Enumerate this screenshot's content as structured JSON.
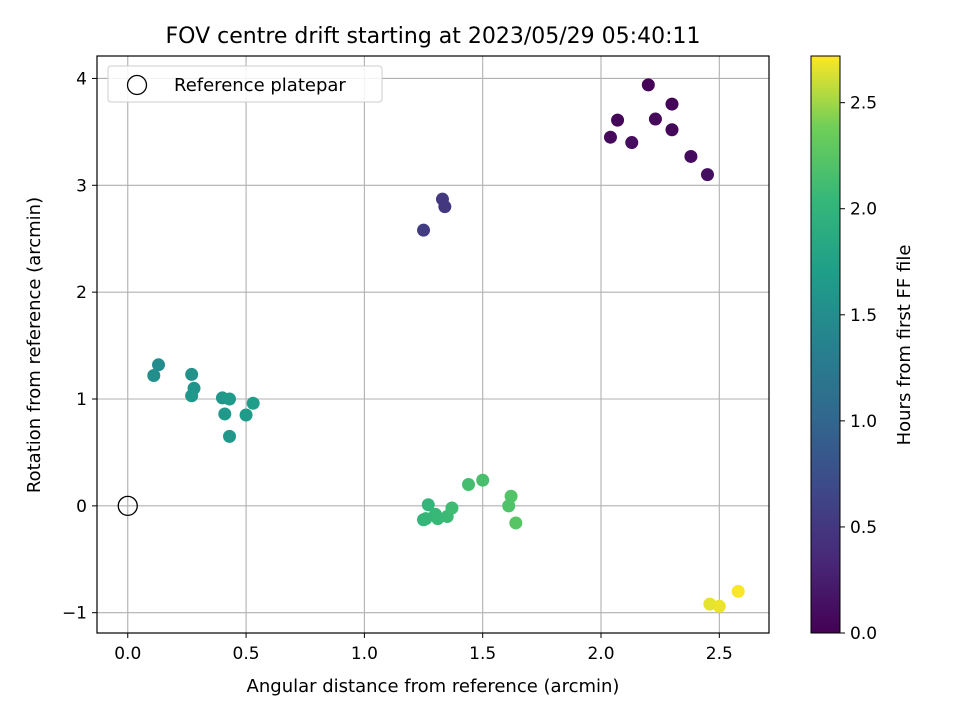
{
  "chart_data": {
    "type": "scatter",
    "title": "FOV centre drift starting at 2023/05/29 05:40:11",
    "xlabel": "Angular distance from reference (arcmin)",
    "ylabel": "Rotation from reference (arcmin)",
    "xlim": [
      -0.13,
      2.71
    ],
    "ylim": [
      -1.19,
      4.21
    ],
    "x_ticks": [
      0.0,
      0.5,
      1.0,
      1.5,
      2.0,
      2.5
    ],
    "x_tick_labels": [
      "0.0",
      "0.5",
      "1.0",
      "1.5",
      "2.0",
      "2.5"
    ],
    "y_ticks": [
      -1,
      0,
      1,
      2,
      3,
      4
    ],
    "y_tick_labels": [
      "−1",
      "0",
      "1",
      "2",
      "3",
      "4"
    ],
    "grid": true,
    "legend": {
      "position": "top-left",
      "label": "Reference platepar"
    },
    "reference": {
      "x": 0.0,
      "y": 0.0
    },
    "colorbar": {
      "label": "Hours from first FF file",
      "range": [
        0.0,
        2.72
      ],
      "ticks": [
        0.0,
        0.5,
        1.0,
        1.5,
        2.0,
        2.5
      ],
      "tick_labels": [
        "0.0",
        "0.5",
        "1.0",
        "1.5",
        "2.0",
        "2.5"
      ],
      "colormap": "viridis"
    },
    "points": [
      {
        "x": 2.2,
        "y": 3.94,
        "hours": 0.02
      },
      {
        "x": 2.07,
        "y": 3.61,
        "hours": 0.04
      },
      {
        "x": 2.3,
        "y": 3.76,
        "hours": 0.03
      },
      {
        "x": 2.23,
        "y": 3.62,
        "hours": 0.06
      },
      {
        "x": 2.04,
        "y": 3.45,
        "hours": 0.08
      },
      {
        "x": 2.13,
        "y": 3.4,
        "hours": 0.1
      },
      {
        "x": 2.3,
        "y": 3.52,
        "hours": 0.05
      },
      {
        "x": 2.38,
        "y": 3.27,
        "hours": 0.09
      },
      {
        "x": 2.45,
        "y": 3.1,
        "hours": 0.12
      },
      {
        "x": 1.25,
        "y": 2.58,
        "hours": 0.55
      },
      {
        "x": 1.33,
        "y": 2.87,
        "hours": 0.52
      },
      {
        "x": 1.34,
        "y": 2.8,
        "hours": 0.5
      },
      {
        "x": 0.11,
        "y": 1.22,
        "hours": 1.52
      },
      {
        "x": 0.13,
        "y": 1.32,
        "hours": 1.48
      },
      {
        "x": 0.27,
        "y": 1.23,
        "hours": 1.55
      },
      {
        "x": 0.28,
        "y": 1.1,
        "hours": 1.58
      },
      {
        "x": 0.27,
        "y": 1.03,
        "hours": 1.6
      },
      {
        "x": 0.4,
        "y": 1.01,
        "hours": 1.62
      },
      {
        "x": 0.43,
        "y": 1.0,
        "hours": 1.66
      },
      {
        "x": 0.41,
        "y": 0.86,
        "hours": 1.64
      },
      {
        "x": 0.53,
        "y": 0.96,
        "hours": 1.7
      },
      {
        "x": 0.5,
        "y": 0.85,
        "hours": 1.68
      },
      {
        "x": 0.43,
        "y": 0.65,
        "hours": 1.61
      },
      {
        "x": 1.27,
        "y": 0.01,
        "hours": 2.02
      },
      {
        "x": 1.3,
        "y": -0.08,
        "hours": 2.05
      },
      {
        "x": 1.25,
        "y": -0.13,
        "hours": 2.0
      },
      {
        "x": 1.26,
        "y": -0.12,
        "hours": 2.03
      },
      {
        "x": 1.31,
        "y": -0.12,
        "hours": 2.06
      },
      {
        "x": 1.35,
        "y": -0.1,
        "hours": 2.08
      },
      {
        "x": 1.37,
        "y": -0.02,
        "hours": 2.1
      },
      {
        "x": 1.44,
        "y": 0.2,
        "hours": 2.13
      },
      {
        "x": 1.5,
        "y": 0.24,
        "hours": 2.16
      },
      {
        "x": 1.62,
        "y": 0.09,
        "hours": 2.22
      },
      {
        "x": 1.61,
        "y": 0.0,
        "hours": 2.2
      },
      {
        "x": 1.64,
        "y": -0.16,
        "hours": 2.25
      },
      {
        "x": 2.46,
        "y": -0.92,
        "hours": 2.66
      },
      {
        "x": 2.5,
        "y": -0.94,
        "hours": 2.68
      },
      {
        "x": 2.58,
        "y": -0.8,
        "hours": 2.71
      }
    ]
  }
}
